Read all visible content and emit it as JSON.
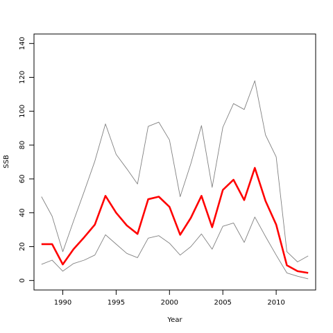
{
  "chart_data": {
    "type": "line",
    "xlabel": "Year",
    "ylabel": "SSB",
    "xlim": [
      1987.3,
      2013.7
    ],
    "ylim": [
      -5.6,
      145.6
    ],
    "x_ticks": [
      1990,
      1995,
      2000,
      2005,
      2010
    ],
    "y_ticks": [
      0,
      20,
      40,
      60,
      80,
      100,
      120,
      140
    ],
    "grid": false,
    "legend": "none",
    "x": [
      1988,
      1989,
      1990,
      1991,
      1992,
      1993,
      1994,
      1995,
      1996,
      1997,
      1998,
      1999,
      2000,
      2001,
      2002,
      2003,
      2004,
      2005,
      2006,
      2007,
      2008,
      2009,
      2010,
      2011,
      2012,
      2013
    ],
    "series": [
      {
        "color": "#808080",
        "values": [
          49.5,
          38,
          17,
          35,
          52.5,
          70.5,
          92.5,
          74.5,
          66,
          57,
          91,
          93.5,
          83,
          49.5,
          69,
          91.5,
          55,
          90.5,
          104.5,
          101,
          118,
          86,
          73,
          17,
          11,
          14.5
        ]
      },
      {
        "color": "#ff0000",
        "values": [
          21.5,
          21.5,
          9.5,
          18.5,
          25.5,
          33,
          50,
          40,
          32.5,
          27.5,
          48,
          49.5,
          43.5,
          27,
          37,
          50,
          31.5,
          53.5,
          59.5,
          47.5,
          66.5,
          47,
          33,
          9,
          5.5,
          4.5
        ]
      },
      {
        "color": "#808080",
        "values": [
          9.5,
          12,
          5.5,
          10,
          12,
          15,
          27,
          21.5,
          16,
          13.5,
          25,
          26.5,
          22,
          15,
          20,
          27.5,
          18.5,
          32,
          34,
          22.5,
          37.5,
          26,
          15,
          4.5,
          2.5,
          1
        ]
      }
    ]
  }
}
